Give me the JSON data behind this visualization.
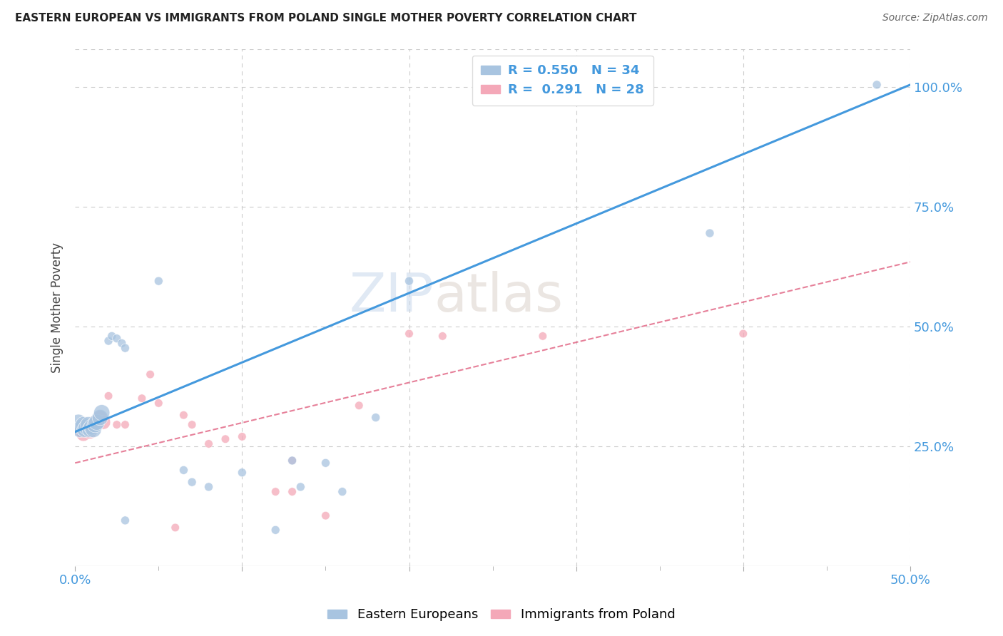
{
  "title": "EASTERN EUROPEAN VS IMMIGRANTS FROM POLAND SINGLE MOTHER POVERTY CORRELATION CHART",
  "source": "Source: ZipAtlas.com",
  "ylabel": "Single Mother Poverty",
  "legend_labels": [
    "Eastern Europeans",
    "Immigrants from Poland"
  ],
  "r_blue": 0.55,
  "n_blue": 34,
  "r_pink": 0.291,
  "n_pink": 28,
  "blue_color": "#a8c4e0",
  "pink_color": "#f4a8b8",
  "blue_line_color": "#4499dd",
  "pink_line_color": "#e06080",
  "watermark_1": "ZIP",
  "watermark_2": "atlas",
  "blue_points": [
    [
      0.002,
      0.3
    ],
    [
      0.003,
      0.285
    ],
    [
      0.004,
      0.29
    ],
    [
      0.005,
      0.295
    ],
    [
      0.006,
      0.285
    ],
    [
      0.007,
      0.29
    ],
    [
      0.008,
      0.295
    ],
    [
      0.009,
      0.285
    ],
    [
      0.01,
      0.29
    ],
    [
      0.011,
      0.285
    ],
    [
      0.012,
      0.295
    ],
    [
      0.013,
      0.3
    ],
    [
      0.015,
      0.31
    ],
    [
      0.016,
      0.32
    ],
    [
      0.02,
      0.47
    ],
    [
      0.022,
      0.48
    ],
    [
      0.025,
      0.475
    ],
    [
      0.028,
      0.465
    ],
    [
      0.03,
      0.455
    ],
    [
      0.05,
      0.595
    ],
    [
      0.065,
      0.2
    ],
    [
      0.07,
      0.175
    ],
    [
      0.08,
      0.165
    ],
    [
      0.1,
      0.195
    ],
    [
      0.13,
      0.22
    ],
    [
      0.135,
      0.165
    ],
    [
      0.15,
      0.215
    ],
    [
      0.16,
      0.155
    ],
    [
      0.18,
      0.31
    ],
    [
      0.2,
      0.595
    ],
    [
      0.03,
      0.095
    ],
    [
      0.38,
      0.695
    ],
    [
      0.48,
      1.005
    ],
    [
      0.12,
      0.075
    ]
  ],
  "pink_points": [
    [
      0.003,
      0.285
    ],
    [
      0.005,
      0.275
    ],
    [
      0.007,
      0.285
    ],
    [
      0.009,
      0.28
    ],
    [
      0.012,
      0.3
    ],
    [
      0.015,
      0.31
    ],
    [
      0.017,
      0.3
    ],
    [
      0.02,
      0.355
    ],
    [
      0.025,
      0.295
    ],
    [
      0.03,
      0.295
    ],
    [
      0.04,
      0.35
    ],
    [
      0.045,
      0.4
    ],
    [
      0.05,
      0.34
    ],
    [
      0.065,
      0.315
    ],
    [
      0.07,
      0.295
    ],
    [
      0.08,
      0.255
    ],
    [
      0.09,
      0.265
    ],
    [
      0.1,
      0.27
    ],
    [
      0.12,
      0.155
    ],
    [
      0.13,
      0.155
    ],
    [
      0.15,
      0.105
    ],
    [
      0.17,
      0.335
    ],
    [
      0.2,
      0.485
    ],
    [
      0.22,
      0.48
    ],
    [
      0.28,
      0.48
    ],
    [
      0.13,
      0.22
    ],
    [
      0.4,
      0.485
    ],
    [
      0.06,
      0.08
    ]
  ],
  "xlim": [
    0.0,
    0.5
  ],
  "ylim": [
    0.0,
    1.08
  ],
  "xticks_major": [
    0.0,
    0.1,
    0.2,
    0.3,
    0.4,
    0.5
  ],
  "xticks_minor": [
    0.05,
    0.15,
    0.25,
    0.35,
    0.45
  ],
  "yticks": [
    0.0,
    0.25,
    0.5,
    0.75,
    1.0
  ],
  "blue_line": {
    "x0": 0.0,
    "y0": 0.28,
    "x1": 0.5,
    "y1": 1.005
  },
  "pink_line": {
    "x0": 0.0,
    "y0": 0.215,
    "x1": 0.5,
    "y1": 0.635
  },
  "background_color": "#ffffff",
  "grid_color": "#cccccc",
  "tick_color": "#4499dd",
  "text_color": "#444444"
}
